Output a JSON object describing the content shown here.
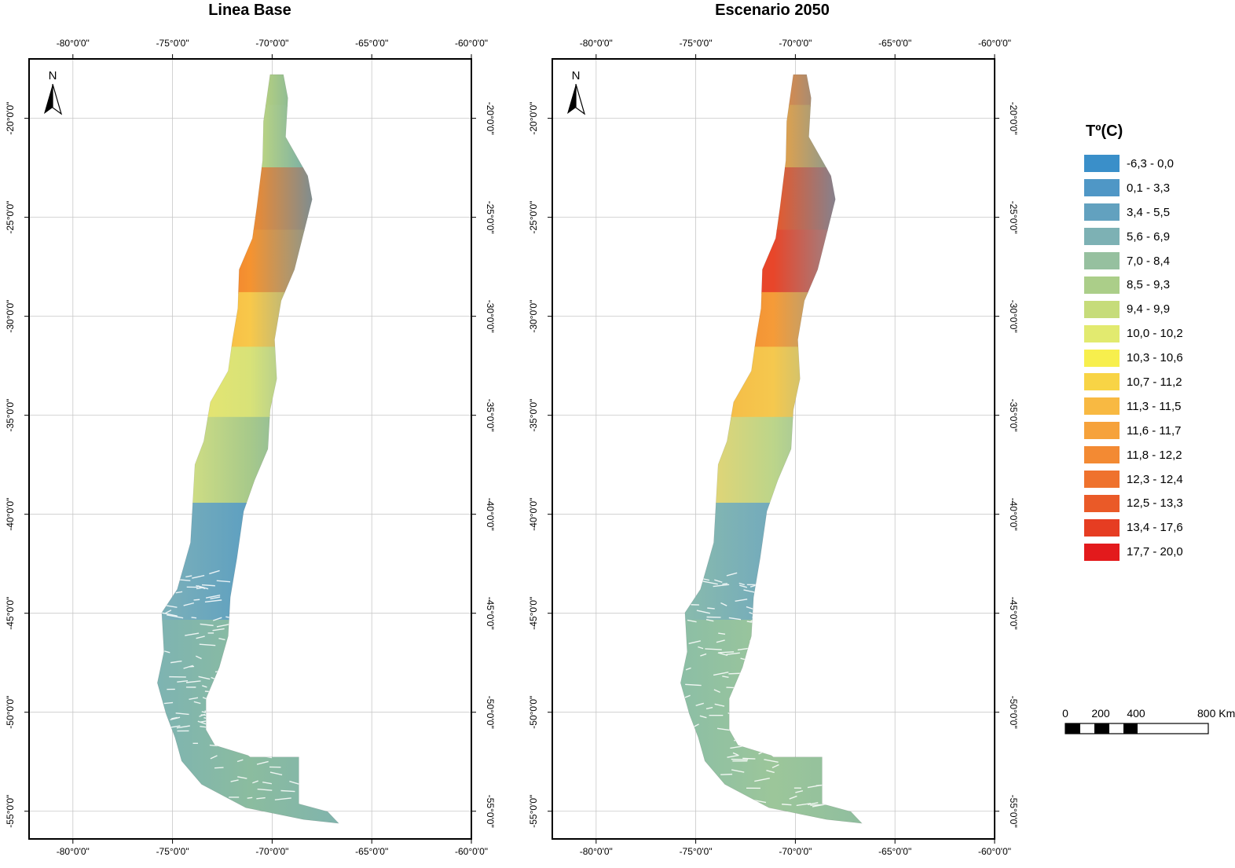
{
  "maps": [
    {
      "title": "Linea Base",
      "zones": [
        {
          "from": 0.0,
          "to": 0.06,
          "west": "#e93b22",
          "mid": "#c9da73",
          "east": "#3a90c8"
        },
        {
          "from": 0.06,
          "to": 0.14,
          "west": "#e64a22",
          "mid": "#c9dc7a",
          "east": "#3f8fc6"
        },
        {
          "from": 0.14,
          "to": 0.22,
          "west": "#e84a24",
          "mid": "#f28a2e",
          "east": "#3f8fc6"
        },
        {
          "from": 0.22,
          "to": 0.3,
          "west": "#e8522a",
          "mid": "#f59330",
          "east": "#4c9ac4"
        },
        {
          "from": 0.3,
          "to": 0.37,
          "west": "#f5a03a",
          "mid": "#f8c84a",
          "east": "#5b9fc4"
        },
        {
          "from": 0.37,
          "to": 0.46,
          "west": "#f2e86a",
          "mid": "#d8e278",
          "east": "#6ca7bd"
        },
        {
          "from": 0.46,
          "to": 0.57,
          "west": "#e8ea80",
          "mid": "#a7c98a",
          "east": "#5f9fc0"
        },
        {
          "from": 0.57,
          "to": 0.72,
          "west": "#7fb2b8",
          "mid": "#5d9fc1",
          "east": "#4f96c3"
        },
        {
          "from": 0.72,
          "to": 1.0,
          "west": "#7db3b3",
          "mid": "#8bbc9f",
          "east": "#7fb3ae"
        }
      ]
    },
    {
      "title": "Escenario 2050",
      "zones": [
        {
          "from": 0.0,
          "to": 0.06,
          "west": "#e93b22",
          "mid": "#f08a3a",
          "east": "#3a90c8"
        },
        {
          "from": 0.06,
          "to": 0.14,
          "west": "#e64a22",
          "mid": "#f2a23e",
          "east": "#4795c6"
        },
        {
          "from": 0.14,
          "to": 0.22,
          "west": "#e84022",
          "mid": "#e8582a",
          "east": "#4f98c4"
        },
        {
          "from": 0.22,
          "to": 0.3,
          "west": "#e84022",
          "mid": "#e8462a",
          "east": "#6fa7be"
        },
        {
          "from": 0.3,
          "to": 0.37,
          "west": "#f07a2c",
          "mid": "#f59b38",
          "east": "#6ca7bd"
        },
        {
          "from": 0.37,
          "to": 0.46,
          "west": "#f5b040",
          "mid": "#f5c84e",
          "east": "#80b5b4"
        },
        {
          "from": 0.46,
          "to": 0.57,
          "west": "#f7d56a",
          "mid": "#bcd58a",
          "east": "#6faabe"
        },
        {
          "from": 0.57,
          "to": 0.72,
          "west": "#8bbcab",
          "mid": "#72aabd",
          "east": "#5e9fc1"
        },
        {
          "from": 0.72,
          "to": 1.0,
          "west": "#8bbea6",
          "mid": "#9cc69a",
          "east": "#8ebd9f"
        }
      ]
    }
  ],
  "axes": {
    "top_labels": [
      "-80°0'0\"",
      "-75°0'0\"",
      "-70°0'0\"",
      "-65°0'0\"",
      "-60°0'0\""
    ],
    "bottom_labels": [
      "-80°0'0\"",
      "-75°0'0\"",
      "-70°0'0\"",
      "-65°0'0\"",
      "-60°0'0\""
    ],
    "lat_labels": [
      "-20°0'0\"",
      "-25°0'0\"",
      "-30°0'0\"",
      "-35°0'0\"",
      "-40°0'0\"",
      "-45°0'0\"",
      "-50°0'0\"",
      "-55°0'0\""
    ],
    "lon_range": [
      -82.2,
      -60
    ],
    "lat_range": [
      -17,
      -56.4
    ]
  },
  "north_arrow": {
    "label": "N",
    "icon": "north-arrow-icon"
  },
  "legend": {
    "title": "Tº(C)",
    "items": [
      {
        "label": "-6,3 - 0,0",
        "color": "#3a8fc9"
      },
      {
        "label": "0,1 - 3,3",
        "color": "#4f97c6"
      },
      {
        "label": "3,4 - 5,5",
        "color": "#62a1bf"
      },
      {
        "label": "5,6 - 6,9",
        "color": "#7db1b4"
      },
      {
        "label": "7,0 - 8,4",
        "color": "#96c09f"
      },
      {
        "label": "8,5 - 9,3",
        "color": "#abce89"
      },
      {
        "label": "9,4 - 9,9",
        "color": "#c6dc7a"
      },
      {
        "label": "10,0 - 10,2",
        "color": "#e2ea6f"
      },
      {
        "label": "10,3 - 10,6",
        "color": "#f7ef4d"
      },
      {
        "label": "10,7 - 11,2",
        "color": "#f8d445"
      },
      {
        "label": "11,3 - 11,5",
        "color": "#f8b942"
      },
      {
        "label": "11,6 - 11,7",
        "color": "#f6a23b"
      },
      {
        "label": "11,8 - 12,2",
        "color": "#f38a33"
      },
      {
        "label": "12,3 - 12,4",
        "color": "#ef722d"
      },
      {
        "label": "12,5 - 13,3",
        "color": "#ea5a28"
      },
      {
        "label": "13,4 - 17,6",
        "color": "#e63d22"
      },
      {
        "label": "17,7 - 20,0",
        "color": "#e31a1c"
      }
    ]
  },
  "scale_bar": {
    "labels": [
      "0",
      "200",
      "400",
      "800 Km"
    ],
    "values_km": [
      0,
      200,
      400,
      800
    ]
  }
}
